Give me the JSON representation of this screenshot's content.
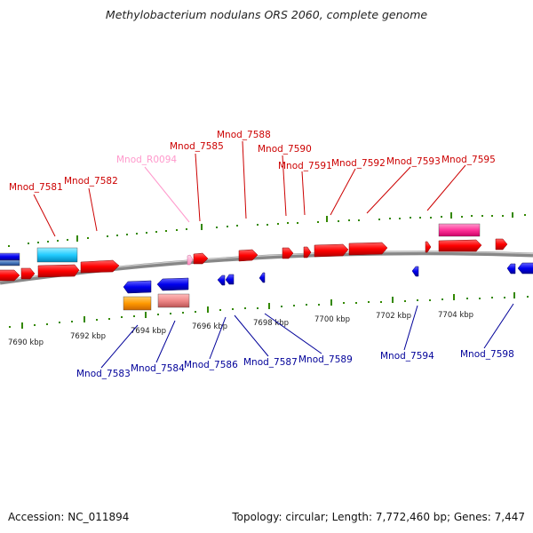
{
  "title": "Methylobacterium nodulans ORS 2060, complete genome",
  "footer": {
    "accession": "Accession: NC_011894",
    "stats": "Topology: circular; Length: 7,772,460 bp; Genes: 7,447"
  },
  "colors": {
    "forward_gene": "#ff0000",
    "reverse_gene": "#0000ff",
    "rna_gene": "#ff99cc",
    "tick": "#338800",
    "backbone": "#888888",
    "forward_label": "#cc0000",
    "reverse_label": "#000099",
    "rna_label": "#ff99cc"
  },
  "scale_labels": [
    "7690 kbp",
    "7692 kbp",
    "7694 kbp",
    "7696 kbp",
    "7698 kbp",
    "7700 kbp",
    "7702 kbp",
    "7704 kbp"
  ],
  "top_labels": [
    {
      "text": "Mnod_7581",
      "kind": "forward"
    },
    {
      "text": "Mnod_7582",
      "kind": "forward"
    },
    {
      "text": "Mnod_R0094",
      "kind": "rna"
    },
    {
      "text": "Mnod_7585",
      "kind": "forward"
    },
    {
      "text": "Mnod_7588",
      "kind": "forward"
    },
    {
      "text": "Mnod_7590",
      "kind": "forward"
    },
    {
      "text": "Mnod_7591",
      "kind": "forward"
    },
    {
      "text": "Mnod_7592",
      "kind": "forward"
    },
    {
      "text": "Mnod_7593",
      "kind": "forward"
    },
    {
      "text": "Mnod_7595",
      "kind": "forward"
    }
  ],
  "bottom_labels": [
    {
      "text": "Mnod_7583",
      "kind": "reverse"
    },
    {
      "text": "Mnod_7584",
      "kind": "reverse"
    },
    {
      "text": "Mnod_7586",
      "kind": "reverse"
    },
    {
      "text": "Mnod_7587",
      "kind": "reverse"
    },
    {
      "text": "Mnod_7589",
      "kind": "reverse"
    },
    {
      "text": "Mnod_7594",
      "kind": "reverse"
    },
    {
      "text": "Mnod_7598",
      "kind": "reverse"
    }
  ]
}
